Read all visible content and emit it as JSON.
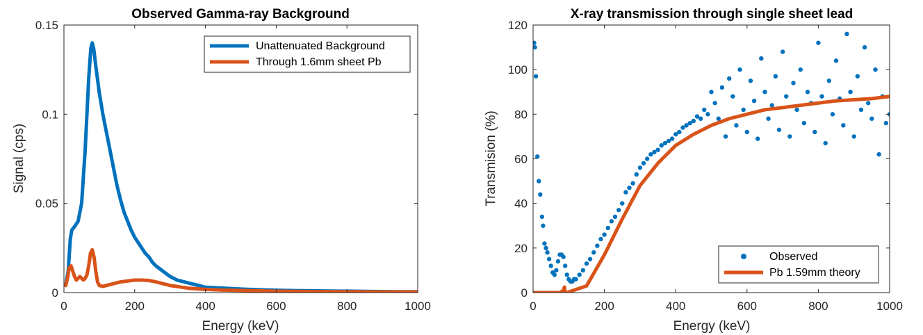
{
  "chart_data": [
    {
      "type": "line",
      "title": "Observed Gamma-ray Background",
      "xlabel": "Energy (keV)",
      "ylabel": "Signal (cps)",
      "xlim": [
        0,
        1000
      ],
      "ylim": [
        0,
        0.15
      ],
      "xticks": [
        0,
        200,
        400,
        600,
        800,
        1000
      ],
      "xtick_labels": [
        "0",
        "200",
        "400",
        "600",
        "800",
        "1000"
      ],
      "yticks": [
        0,
        0.05,
        0.1,
        0.15
      ],
      "ytick_labels": [
        "0",
        "0.05",
        "0.1",
        "0.15"
      ],
      "legend_position": "top-right",
      "grid": false,
      "series": [
        {
          "name": "Unattenuated Background",
          "color": "#0072BD",
          "x": [
            5,
            12,
            18,
            22,
            30,
            40,
            50,
            60,
            70,
            76,
            80,
            84,
            90,
            100,
            110,
            120,
            130,
            140,
            150,
            160,
            170,
            180,
            190,
            200,
            210,
            220,
            230,
            240,
            250,
            260,
            280,
            300,
            320,
            340,
            360,
            380,
            400,
            450,
            500,
            550,
            600,
            650,
            700,
            750,
            800,
            850,
            900,
            950,
            1000
          ],
          "y": [
            0.004,
            0.012,
            0.03,
            0.035,
            0.037,
            0.04,
            0.05,
            0.08,
            0.12,
            0.137,
            0.14,
            0.137,
            0.127,
            0.112,
            0.1,
            0.09,
            0.08,
            0.07,
            0.06,
            0.052,
            0.045,
            0.04,
            0.035,
            0.031,
            0.028,
            0.025,
            0.022,
            0.02,
            0.017,
            0.015,
            0.012,
            0.009,
            0.007,
            0.006,
            0.005,
            0.004,
            0.003,
            0.0025,
            0.002,
            0.0016,
            0.0013,
            0.0011,
            0.001,
            0.0009,
            0.0008,
            0.0007,
            0.0006,
            0.0005,
            0.0005
          ]
        },
        {
          "name": "Through 1.6mm sheet Pb",
          "color": "#D95319",
          "x": [
            5,
            10,
            15,
            20,
            25,
            30,
            35,
            40,
            45,
            50,
            55,
            60,
            65,
            70,
            75,
            80,
            85,
            90,
            95,
            100,
            110,
            120,
            140,
            160,
            180,
            200,
            220,
            240,
            260,
            280,
            300,
            350,
            400,
            450,
            500,
            600,
            700,
            800,
            900,
            1000
          ],
          "y": [
            0.004,
            0.008,
            0.014,
            0.015,
            0.012,
            0.009,
            0.007,
            0.008,
            0.009,
            0.008,
            0.007,
            0.008,
            0.01,
            0.015,
            0.022,
            0.024,
            0.02,
            0.012,
            0.006,
            0.004,
            0.0035,
            0.004,
            0.005,
            0.006,
            0.0065,
            0.007,
            0.007,
            0.0068,
            0.006,
            0.005,
            0.004,
            0.0025,
            0.0018,
            0.0014,
            0.0012,
            0.0008,
            0.0006,
            0.0005,
            0.0004,
            0.0004
          ]
        }
      ]
    },
    {
      "type": "scatter",
      "title": "X-ray transmission through single sheet lead",
      "xlabel": "Energy (keV)",
      "ylabel": "Transmision (%)",
      "xlim": [
        0,
        1000
      ],
      "ylim": [
        0,
        120
      ],
      "xticks": [
        0,
        200,
        400,
        600,
        800,
        1000
      ],
      "xtick_labels": [
        "0",
        "200",
        "400",
        "600",
        "800",
        "1000"
      ],
      "yticks": [
        0,
        20,
        40,
        60,
        80,
        100,
        120
      ],
      "ytick_labels": [
        "0",
        "20",
        "40",
        "60",
        "80",
        "100",
        "120"
      ],
      "legend_position": "bottom-right",
      "grid": false,
      "series": [
        {
          "name": "Observed",
          "type": "scatter",
          "color": "#0072BD",
          "points": [
            [
              3,
              112
            ],
            [
              5,
              110
            ],
            [
              8,
              97
            ],
            [
              12,
              61
            ],
            [
              16,
              50
            ],
            [
              20,
              44
            ],
            [
              25,
              34
            ],
            [
              28,
              30
            ],
            [
              32,
              22
            ],
            [
              36,
              20
            ],
            [
              40,
              18
            ],
            [
              45,
              15
            ],
            [
              50,
              12
            ],
            [
              55,
              9
            ],
            [
              60,
              8
            ],
            [
              65,
              10
            ],
            [
              70,
              14
            ],
            [
              75,
              17
            ],
            [
              80,
              17
            ],
            [
              85,
              16
            ],
            [
              90,
              12
            ],
            [
              95,
              8
            ],
            [
              100,
              6
            ],
            [
              105,
              5
            ],
            [
              110,
              5
            ],
            [
              115,
              6
            ],
            [
              120,
              6
            ],
            [
              130,
              8
            ],
            [
              140,
              10
            ],
            [
              150,
              13
            ],
            [
              160,
              15
            ],
            [
              170,
              18
            ],
            [
              180,
              21
            ],
            [
              190,
              24
            ],
            [
              200,
              26
            ],
            [
              210,
              29
            ],
            [
              220,
              32
            ],
            [
              230,
              34
            ],
            [
              240,
              37
            ],
            [
              250,
              40
            ],
            [
              260,
              45
            ],
            [
              270,
              47
            ],
            [
              280,
              49
            ],
            [
              290,
              53
            ],
            [
              300,
              56
            ],
            [
              310,
              58
            ],
            [
              320,
              60
            ],
            [
              330,
              62
            ],
            [
              340,
              63
            ],
            [
              350,
              64
            ],
            [
              360,
              66
            ],
            [
              370,
              67
            ],
            [
              380,
              68
            ],
            [
              390,
              69
            ],
            [
              400,
              71
            ],
            [
              410,
              72
            ],
            [
              420,
              74
            ],
            [
              430,
              75
            ],
            [
              440,
              76
            ],
            [
              450,
              77
            ],
            [
              460,
              79
            ],
            [
              470,
              78
            ],
            [
              480,
              82
            ],
            [
              490,
              80
            ],
            [
              500,
              90
            ],
            [
              510,
              85
            ],
            [
              520,
              78
            ],
            [
              530,
              92
            ],
            [
              540,
              70
            ],
            [
              550,
              96
            ],
            [
              560,
              88
            ],
            [
              570,
              75
            ],
            [
              580,
              100
            ],
            [
              590,
              82
            ],
            [
              600,
              72
            ],
            [
              610,
              95
            ],
            [
              620,
              86
            ],
            [
              630,
              69
            ],
            [
              640,
              105
            ],
            [
              650,
              90
            ],
            [
              660,
              78
            ],
            [
              670,
              84
            ],
            [
              680,
              97
            ],
            [
              690,
              73
            ],
            [
              700,
              108
            ],
            [
              710,
              88
            ],
            [
              720,
              70
            ],
            [
              730,
              94
            ],
            [
              740,
              82
            ],
            [
              750,
              100
            ],
            [
              760,
              76
            ],
            [
              770,
              90
            ],
            [
              780,
              85
            ],
            [
              790,
              72
            ],
            [
              800,
              112
            ],
            [
              810,
              88
            ],
            [
              820,
              67
            ],
            [
              830,
              95
            ],
            [
              840,
              80
            ],
            [
              850,
              104
            ],
            [
              860,
              87
            ],
            [
              870,
              75
            ],
            [
              880,
              116
            ],
            [
              890,
              90
            ],
            [
              900,
              70
            ],
            [
              910,
              97
            ],
            [
              920,
              82
            ],
            [
              930,
              110
            ],
            [
              940,
              85
            ],
            [
              950,
              78
            ],
            [
              960,
              100
            ],
            [
              970,
              62
            ],
            [
              980,
              88
            ],
            [
              990,
              76
            ],
            [
              1000,
              80
            ]
          ]
        },
        {
          "name": "Pb 1.59mm theory",
          "type": "line",
          "color": "#D95319",
          "x": [
            0,
            75,
            85,
            88,
            90,
            95,
            150,
            200,
            250,
            300,
            350,
            400,
            450,
            500,
            550,
            600,
            650,
            700,
            750,
            800,
            850,
            900,
            950,
            1000
          ],
          "y": [
            0,
            0,
            1,
            2.5,
            0,
            0,
            3,
            17,
            33,
            48,
            58,
            66,
            71,
            75,
            78,
            80,
            82,
            83,
            84,
            85,
            86,
            86.5,
            87,
            88
          ]
        }
      ]
    }
  ]
}
